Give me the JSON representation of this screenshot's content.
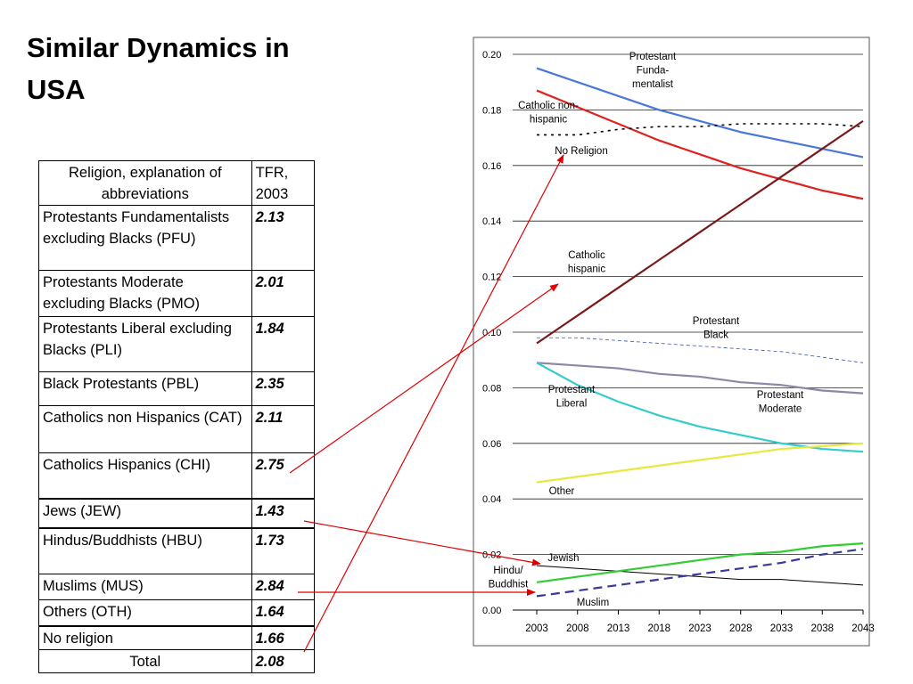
{
  "slide": {
    "title": "Similar Dynamics in USA"
  },
  "table": {
    "header": [
      "Religion, explanation of abbreviations",
      "TFR, 2003"
    ],
    "rows": [
      {
        "religion": "Protestants Fundamentalists excluding Blacks (PFU)",
        "tfr": "2.13"
      },
      {
        "religion": "Protestants Moderate excluding Blacks (PMO)",
        "tfr": "2.01"
      },
      {
        "religion": "Protestants Liberal excluding Blacks (PLI)",
        "tfr": "1.84"
      },
      {
        "religion": "Black Protestants (PBL)",
        "tfr": "2.35"
      },
      {
        "religion": "Catholics non Hispanics (CAT)",
        "tfr": "2.11"
      },
      {
        "religion": "Catholics Hispanics (CHI)",
        "tfr": "2.75"
      },
      {
        "religion": "Jews (JEW)",
        "tfr": "1.43"
      },
      {
        "religion": "Hindus/Buddhists (HBU)",
        "tfr": "1.73"
      },
      {
        "religion": "Muslims (MUS)",
        "tfr": "2.84"
      },
      {
        "religion": "Others (OTH)",
        "tfr": "1.64"
      },
      {
        "religion": "No religion",
        "tfr": "1.66"
      }
    ],
    "total": {
      "label": "Total",
      "tfr": "2.08"
    }
  },
  "chart_data": {
    "type": "line",
    "title": "",
    "xlabel": "",
    "ylabel": "",
    "x": [
      2003,
      2008,
      2013,
      2018,
      2023,
      2028,
      2033,
      2038,
      2043
    ],
    "x_tick_labels": [
      "2003",
      "2008",
      "2013",
      "2018",
      "2023",
      "2028",
      "2033",
      "2038",
      "2043"
    ],
    "ylim": [
      0,
      0.2
    ],
    "y_ticks": [
      "0.20",
      "0.18",
      "0.16",
      "0.14",
      "0.12",
      "0.10",
      "0.08",
      "0.06",
      "0.04",
      "0.02",
      "0.00"
    ],
    "grid": "horizontal",
    "legend": "none",
    "series": [
      {
        "name": "Protestant Funda- mentalist",
        "color": "#4a78d8",
        "style": "solid",
        "values": [
          0.195,
          0.19,
          0.185,
          0.18,
          0.176,
          0.172,
          0.169,
          0.166,
          0.163
        ]
      },
      {
        "name": "No Religion",
        "color": "#dd2222",
        "style": "solid",
        "values": [
          0.187,
          0.181,
          0.175,
          0.169,
          0.164,
          0.159,
          0.155,
          0.151,
          0.148
        ]
      },
      {
        "name": "Catholic non- hispanic",
        "color": "#000000",
        "style": "dotted",
        "values": [
          0.171,
          0.171,
          0.173,
          0.174,
          0.174,
          0.175,
          0.175,
          0.175,
          0.174
        ]
      },
      {
        "name": "Catholic hispanic",
        "color": "#7a1a1a",
        "style": "solid",
        "values": [
          0.096,
          0.106,
          0.116,
          0.126,
          0.136,
          0.146,
          0.156,
          0.166,
          0.176
        ]
      },
      {
        "name": "Protestant Black",
        "color": "#3355aa",
        "style": "dashed-thin",
        "values": [
          0.098,
          0.098,
          0.097,
          0.096,
          0.095,
          0.094,
          0.093,
          0.091,
          0.089
        ]
      },
      {
        "name": "Protestant Moderate",
        "color": "#8a8aa8",
        "style": "solid",
        "values": [
          0.089,
          0.088,
          0.087,
          0.085,
          0.084,
          0.082,
          0.081,
          0.079,
          0.078
        ]
      },
      {
        "name": "Protestant Liberal",
        "color": "#33cccc",
        "style": "solid",
        "values": [
          0.089,
          0.081,
          0.075,
          0.07,
          0.066,
          0.063,
          0.06,
          0.058,
          0.057
        ]
      },
      {
        "name": "Other",
        "color": "#e8e840",
        "style": "solid",
        "values": [
          0.046,
          0.048,
          0.05,
          0.052,
          0.054,
          0.056,
          0.058,
          0.059,
          0.06
        ]
      },
      {
        "name": "Jewish",
        "color": "#000000",
        "style": "solid-thin",
        "values": [
          0.016,
          0.015,
          0.014,
          0.013,
          0.012,
          0.011,
          0.011,
          0.01,
          0.009
        ]
      },
      {
        "name": "Hindu/ Buddhist",
        "color": "#33cc33",
        "style": "solid",
        "values": [
          0.01,
          0.012,
          0.014,
          0.016,
          0.018,
          0.02,
          0.021,
          0.023,
          0.024
        ]
      },
      {
        "name": "Muslim",
        "color": "#3a3a99",
        "style": "dashed",
        "values": [
          0.005,
          0.007,
          0.009,
          0.011,
          0.013,
          0.015,
          0.017,
          0.02,
          0.022
        ]
      }
    ]
  }
}
